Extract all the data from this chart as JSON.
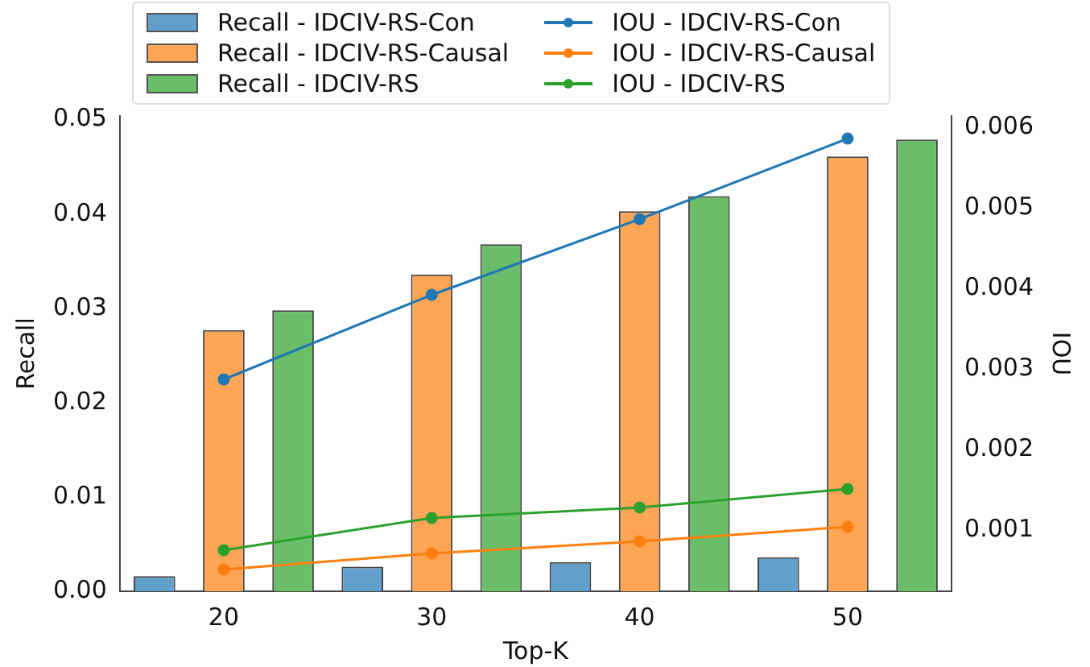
{
  "chart_data": {
    "type": "bar",
    "xlabel": "Top-K",
    "ylabel": "Recall",
    "y2label": "IOU",
    "categories": [
      "20",
      "30",
      "40",
      "50"
    ],
    "series": [
      {
        "name": "Recall - IDCIV-RS-Con",
        "color": "#62a0cb",
        "values": [
          0.0016,
          0.0026,
          0.0031,
          0.0036
        ]
      },
      {
        "name": "Recall - IDCIV-RS-Causal",
        "color": "#ffa556",
        "values": [
          0.0277,
          0.0336,
          0.0403,
          0.0461
        ]
      },
      {
        "name": "Recall - IDCIV-RS",
        "color": "#6abd69",
        "values": [
          0.0298,
          0.0368,
          0.0419,
          0.0479
        ]
      },
      {
        "name": "IOU - IDCIV-RS-Con",
        "type": "line",
        "axis": "y2",
        "color": "#1f77b4",
        "values": [
          0.00287,
          0.00392,
          0.00486,
          0.00586
        ]
      },
      {
        "name": "IOU - IDCIV-RS-Causal",
        "type": "line",
        "axis": "y2",
        "color": "#ff7f0e",
        "values": [
          0.00051,
          0.00071,
          0.00086,
          0.00104
        ]
      },
      {
        "name": "IOU - IDCIV-RS",
        "type": "line",
        "axis": "y2",
        "color": "#2ca02c",
        "values": [
          0.00075,
          0.00115,
          0.00128,
          0.00151
        ]
      }
    ],
    "ylim": [
      0,
      0.0504
    ],
    "yticks": [
      {
        "value": 0,
        "label": "0.00"
      },
      {
        "value": 0.01,
        "label": "0.01"
      },
      {
        "value": 0.02,
        "label": "0.02"
      },
      {
        "value": 0.03,
        "label": "0.03"
      },
      {
        "value": 0.04,
        "label": "0.04"
      },
      {
        "value": 0.05,
        "label": "0.05"
      }
    ],
    "y2lim": [
      0.00024,
      0.00614
    ],
    "y2ticks": [
      0.001,
      0.002,
      0.003,
      0.004,
      0.005,
      0.006
    ],
    "legend": "top",
    "marker": "circle",
    "line_style": "solid",
    "grid": false
  }
}
